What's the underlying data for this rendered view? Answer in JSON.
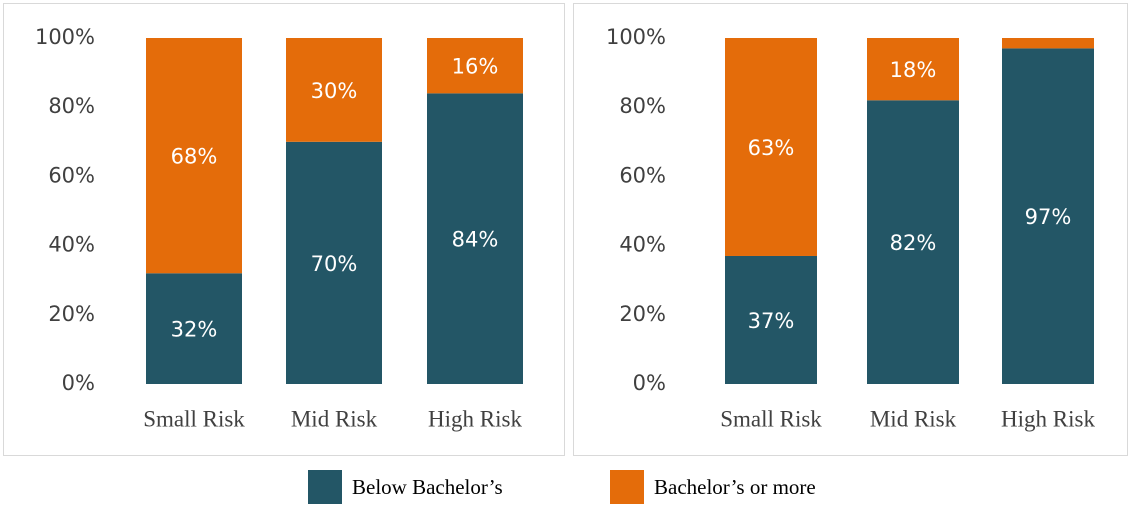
{
  "chart_data": [
    {
      "type": "bar",
      "stacked": true,
      "categories": [
        "Small Risk",
        "Mid Risk",
        "High Risk"
      ],
      "series": [
        {
          "color": "#235666",
          "values": [
            32,
            70,
            84
          ],
          "value_labels": [
            "32%",
            "70%",
            "84%"
          ]
        },
        {
          "color": "#e46c0a",
          "values": [
            68,
            30,
            16
          ],
          "value_labels": [
            "68%",
            "30%",
            "16%"
          ]
        }
      ],
      "ylim": [
        0,
        100
      ],
      "yticks": [
        {
          "value": 0,
          "label": "0%"
        },
        {
          "value": 20,
          "label": "20%"
        },
        {
          "value": 40,
          "label": "40%"
        },
        {
          "value": 60,
          "label": "60%"
        },
        {
          "value": 80,
          "label": "80%"
        },
        {
          "value": 100,
          "label": "100%"
        }
      ]
    },
    {
      "type": "bar",
      "stacked": true,
      "categories": [
        "Small Risk",
        "Mid Risk",
        "High Risk"
      ],
      "series": [
        {
          "color": "#235666",
          "values": [
            37,
            82,
            97
          ],
          "value_labels": [
            "37%",
            "82%",
            "97%"
          ]
        },
        {
          "color": "#e46c0a",
          "values": [
            63,
            18,
            3
          ],
          "value_labels": [
            "63%",
            "18%",
            null
          ]
        }
      ],
      "ylim": [
        0,
        100
      ],
      "yticks": [
        {
          "value": 0,
          "label": "0%"
        },
        {
          "value": 20,
          "label": "20%"
        },
        {
          "value": 40,
          "label": "40%"
        },
        {
          "value": 60,
          "label": "60%"
        },
        {
          "value": 80,
          "label": "80%"
        },
        {
          "value": 100,
          "label": "100%"
        }
      ]
    }
  ],
  "legend": [
    {
      "name": "Below Bachelor’s",
      "color": "#235666"
    },
    {
      "name": "Bachelor’s or more",
      "color": "#e46c0a"
    }
  ]
}
